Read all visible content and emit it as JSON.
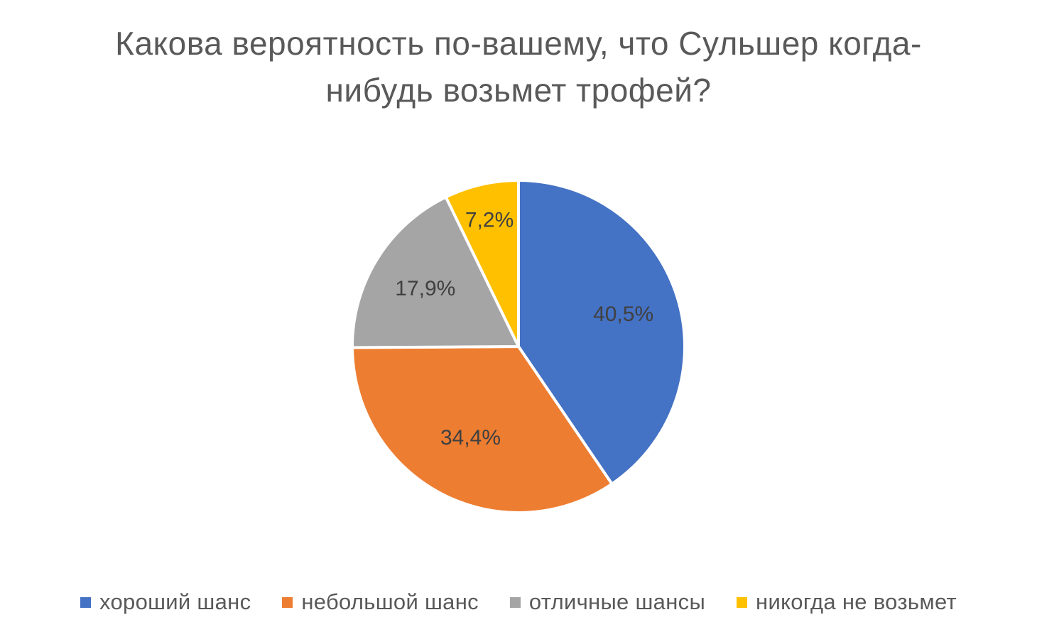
{
  "chart_data": {
    "type": "pie",
    "title": "Какова вероятность по-вашему, что Сульшер когда-нибудь возьмет трофей?",
    "title_lines": [
      "Какова вероятность по-вашему, что Сульшер когда-",
      "нибудь возьмет трофей?"
    ],
    "slices": [
      {
        "name": "хороший шанс",
        "value": 40.5,
        "label": "40,5%",
        "color": "#4472C4"
      },
      {
        "name": "небольшой шанс",
        "value": 34.4,
        "label": "34,4%",
        "color": "#ED7D31"
      },
      {
        "name": "отличные шансы",
        "value": 17.9,
        "label": "17,9%",
        "color": "#A5A5A5"
      },
      {
        "name": "никогда не возьмет",
        "value": 7.2,
        "label": "7,2%",
        "color": "#FFC000"
      }
    ],
    "legend_position": "bottom",
    "start_angle": "12 o'clock",
    "direction": "clockwise"
  }
}
